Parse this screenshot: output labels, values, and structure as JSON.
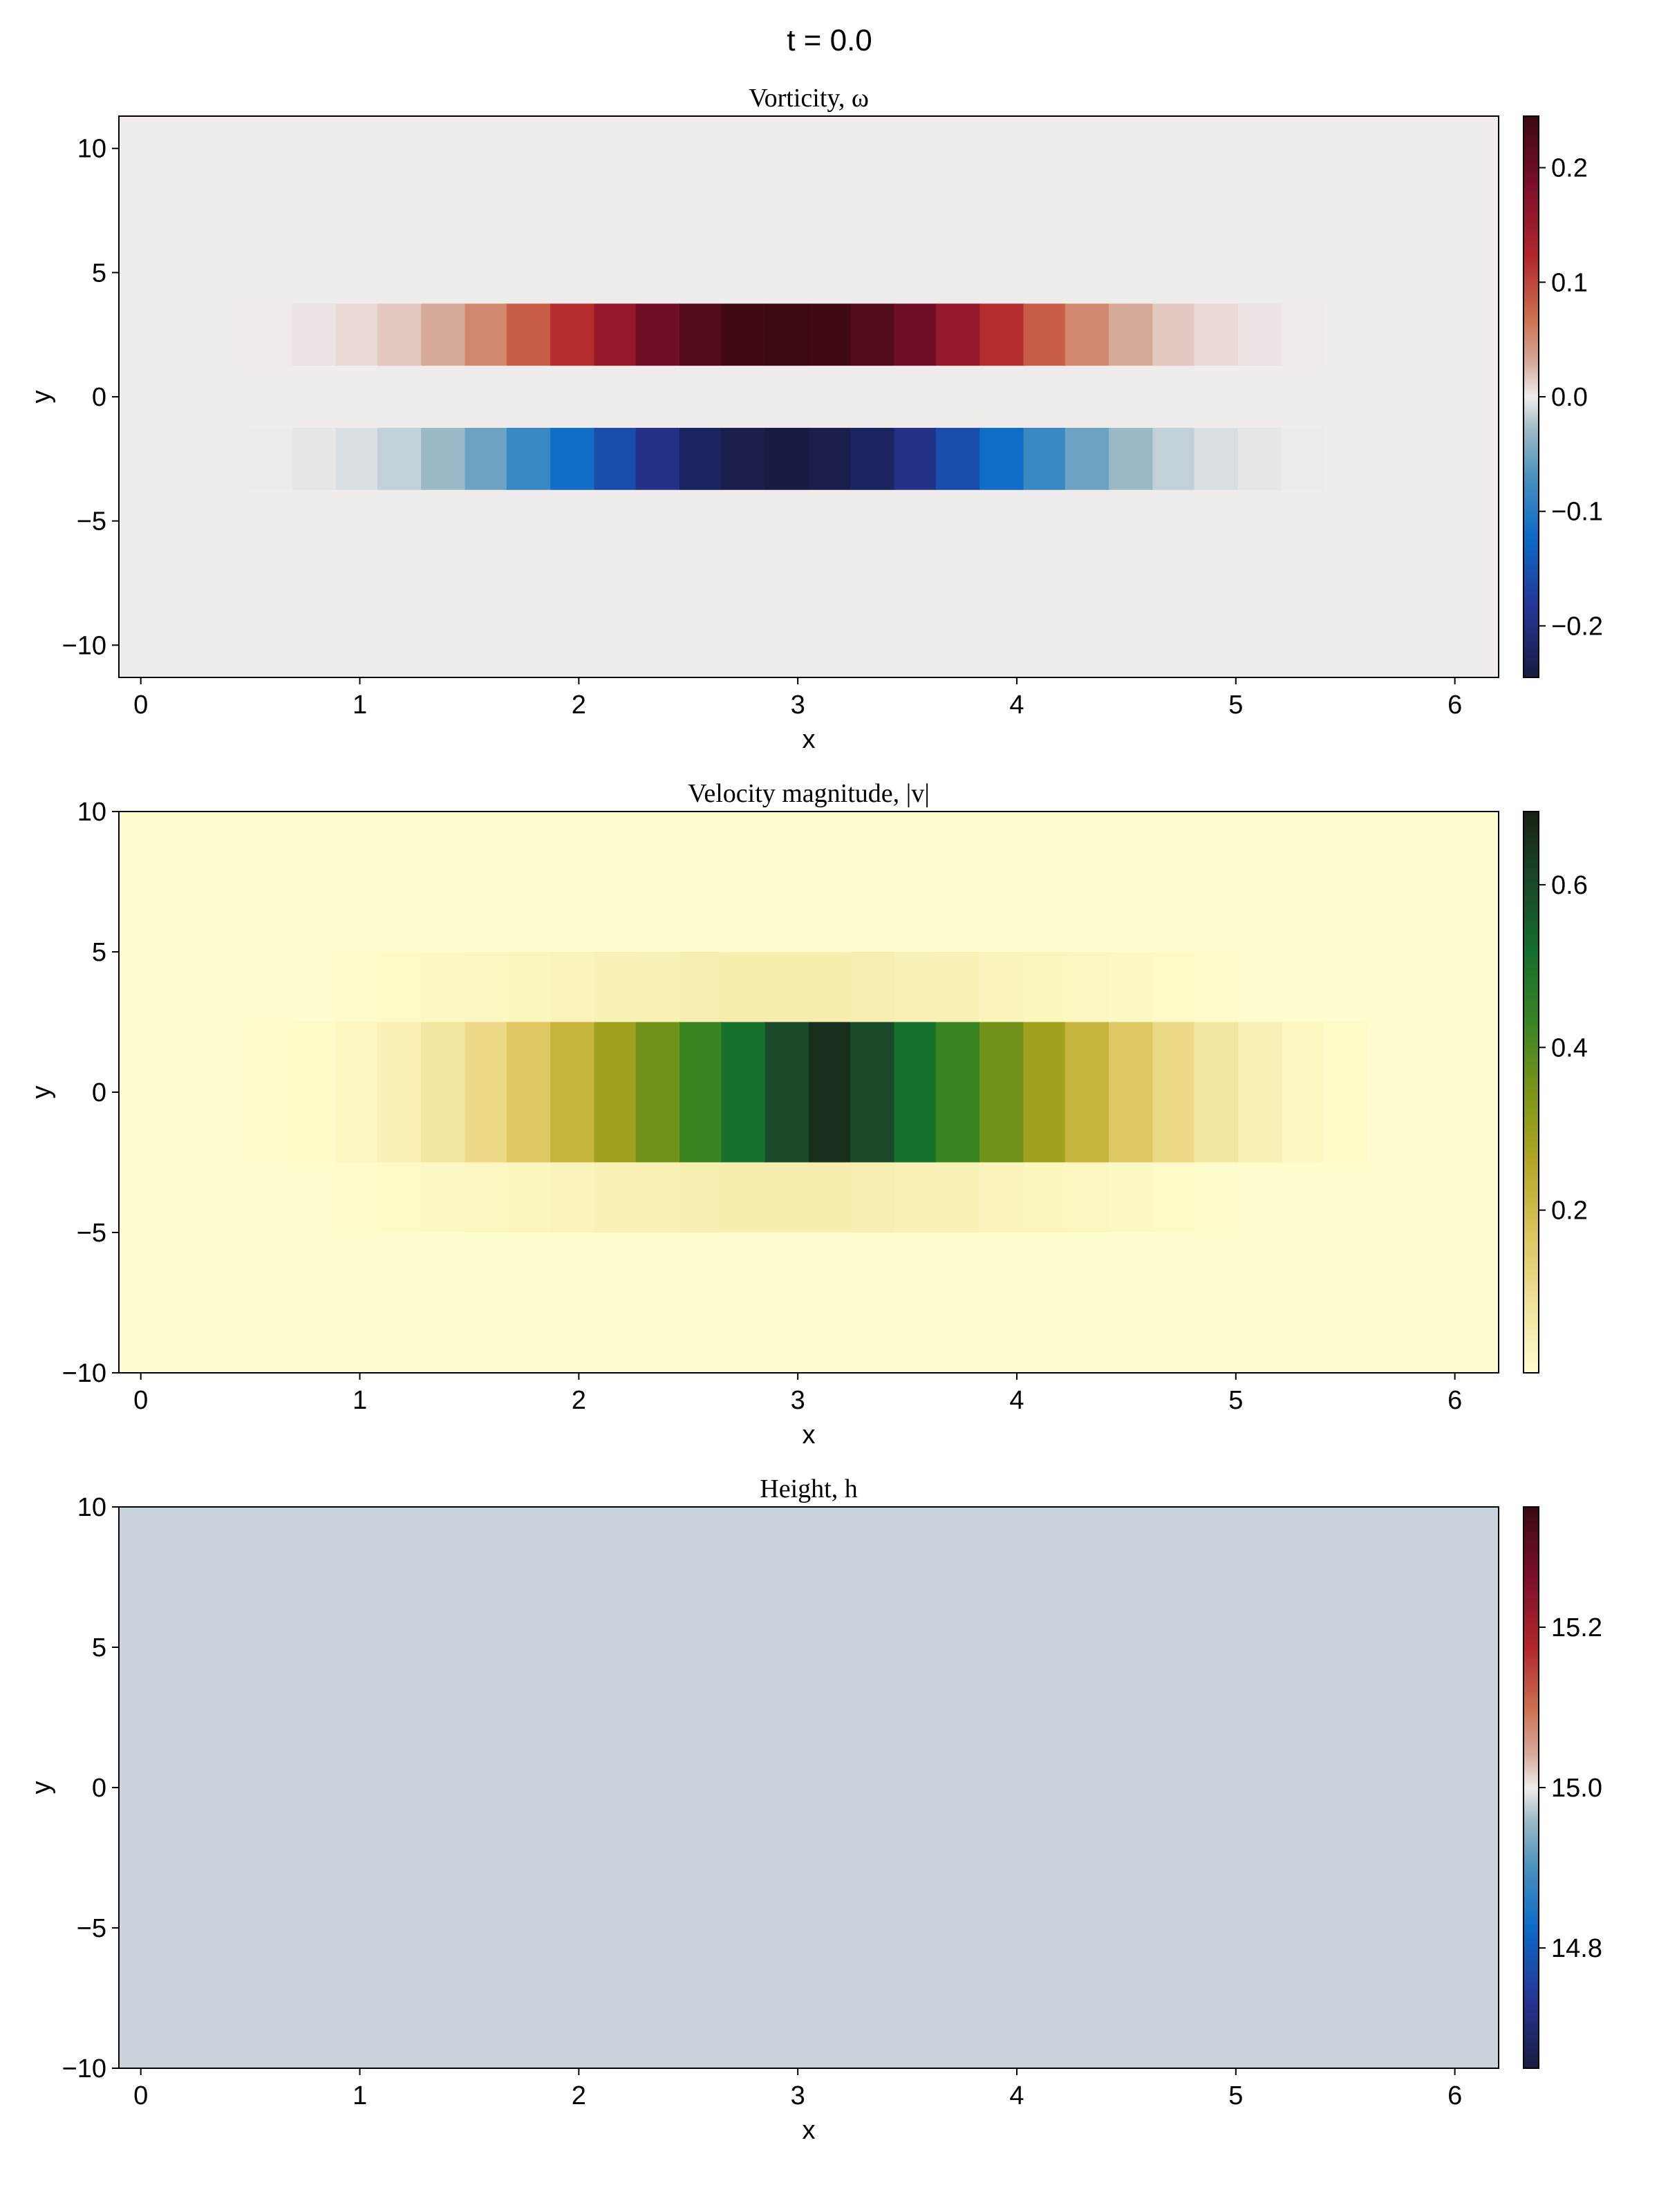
{
  "figure": {
    "title": "t = 0.0"
  },
  "chart_data": [
    {
      "type": "heatmap",
      "title": "Vorticity, ω",
      "xlabel": "x",
      "ylabel": "y",
      "xlim": [
        -0.1,
        6.2
      ],
      "ylim": [
        -11.3,
        11.3
      ],
      "xticks": [
        0,
        1,
        2,
        3,
        4,
        5,
        6
      ],
      "yticks": [
        -10,
        -5,
        0,
        5,
        10
      ],
      "ytick_labels": [
        "−10",
        "−5",
        "0",
        "5",
        "10"
      ],
      "x_edges": [
        0.49,
        0.69,
        0.89,
        1.08,
        1.28,
        1.48,
        1.67,
        1.87,
        2.07,
        2.26,
        2.46,
        2.65,
        2.85,
        3.05,
        3.24,
        3.44,
        3.63,
        3.83,
        4.03,
        4.22,
        4.42,
        4.62,
        4.81,
        5.01,
        5.21,
        5.4,
        5.6
      ],
      "rows": [
        {
          "y0": 1.25,
          "y1": 3.75,
          "values": [
            0.001,
            0.003,
            0.008,
            0.016,
            0.03,
            0.052,
            0.082,
            0.118,
            0.158,
            0.196,
            0.225,
            0.24,
            0.245,
            0.24,
            0.225,
            0.196,
            0.158,
            0.118,
            0.082,
            0.052,
            0.03,
            0.016,
            0.008,
            0.003,
            0.001,
            0.0
          ]
        },
        {
          "y0": -3.75,
          "y1": -1.25,
          "values": [
            -0.001,
            -0.003,
            -0.008,
            -0.016,
            -0.03,
            -0.052,
            -0.082,
            -0.118,
            -0.158,
            -0.196,
            -0.225,
            -0.24,
            -0.245,
            -0.24,
            -0.225,
            -0.196,
            -0.158,
            -0.118,
            -0.082,
            -0.052,
            -0.03,
            -0.016,
            -0.008,
            -0.003,
            -0.001,
            0.0
          ]
        }
      ],
      "background_value": 0.0,
      "colorbar": {
        "colormap": "balance",
        "range": [
          -0.245,
          0.245
        ],
        "ticks": [
          -0.2,
          -0.1,
          0.0,
          0.1,
          0.2
        ],
        "tick_labels": [
          "−0.2",
          "−0.1",
          "0.0",
          "0.1",
          "0.2"
        ]
      }
    },
    {
      "type": "heatmap",
      "title": "Velocity magnitude, |v|",
      "xlabel": "x",
      "ylabel": "y",
      "xlim": [
        -0.1,
        6.2
      ],
      "ylim": [
        -10,
        10
      ],
      "xticks": [
        0,
        1,
        2,
        3,
        4,
        5,
        6
      ],
      "yticks": [
        -10,
        -5,
        0,
        5,
        10
      ],
      "ytick_labels": [
        "−10",
        "−5",
        "0",
        "5",
        "10"
      ],
      "x_edges": [
        0.49,
        0.69,
        0.89,
        1.08,
        1.28,
        1.48,
        1.67,
        1.87,
        2.07,
        2.26,
        2.46,
        2.65,
        2.85,
        3.05,
        3.24,
        3.44,
        3.63,
        3.83,
        4.03,
        4.22,
        4.42,
        4.62,
        4.81,
        5.01,
        5.21,
        5.4,
        5.6
      ],
      "rows": [
        {
          "y0": 2.5,
          "y1": 5.0,
          "values": [
            0.0,
            0.0,
            0.005,
            0.01,
            0.015,
            0.02,
            0.025,
            0.03,
            0.035,
            0.04,
            0.045,
            0.05,
            0.05,
            0.05,
            0.045,
            0.04,
            0.035,
            0.03,
            0.025,
            0.02,
            0.015,
            0.01,
            0.005,
            0.0,
            0.0,
            0.0
          ]
        },
        {
          "y0": -2.5,
          "y1": 2.5,
          "values": [
            0.005,
            0.01,
            0.02,
            0.04,
            0.07,
            0.11,
            0.16,
            0.22,
            0.29,
            0.36,
            0.43,
            0.51,
            0.6,
            0.66,
            0.6,
            0.51,
            0.43,
            0.36,
            0.29,
            0.22,
            0.16,
            0.11,
            0.07,
            0.04,
            0.02,
            0.01
          ]
        },
        {
          "y0": -5.0,
          "y1": -2.5,
          "values": [
            0.0,
            0.0,
            0.005,
            0.01,
            0.015,
            0.02,
            0.025,
            0.03,
            0.035,
            0.04,
            0.045,
            0.05,
            0.05,
            0.05,
            0.045,
            0.04,
            0.035,
            0.03,
            0.025,
            0.02,
            0.015,
            0.01,
            0.005,
            0.0,
            0.0,
            0.0
          ]
        }
      ],
      "background_value": 0.0,
      "colorbar": {
        "colormap": "speed",
        "range": [
          0.0,
          0.69
        ],
        "ticks": [
          0.2,
          0.4,
          0.6
        ],
        "tick_labels": [
          "0.2",
          "0.4",
          "0.6"
        ]
      }
    },
    {
      "type": "heatmap",
      "title": "Height, h",
      "xlabel": "x",
      "ylabel": "y",
      "xlim": [
        -0.1,
        6.2
      ],
      "ylim": [
        -10,
        10
      ],
      "xticks": [
        0,
        1,
        2,
        3,
        4,
        5,
        6
      ],
      "yticks": [
        -10,
        -5,
        0,
        5,
        10
      ],
      "ytick_labels": [
        "−10",
        "−5",
        "0",
        "5",
        "10"
      ],
      "x_edges": [],
      "rows": [],
      "background_value": 14.98,
      "colorbar": {
        "colormap": "balance",
        "range": [
          14.65,
          15.35
        ],
        "ticks": [
          14.8,
          15.0,
          15.2
        ],
        "tick_labels": [
          "14.8",
          "15.0",
          "15.2"
        ]
      }
    }
  ]
}
